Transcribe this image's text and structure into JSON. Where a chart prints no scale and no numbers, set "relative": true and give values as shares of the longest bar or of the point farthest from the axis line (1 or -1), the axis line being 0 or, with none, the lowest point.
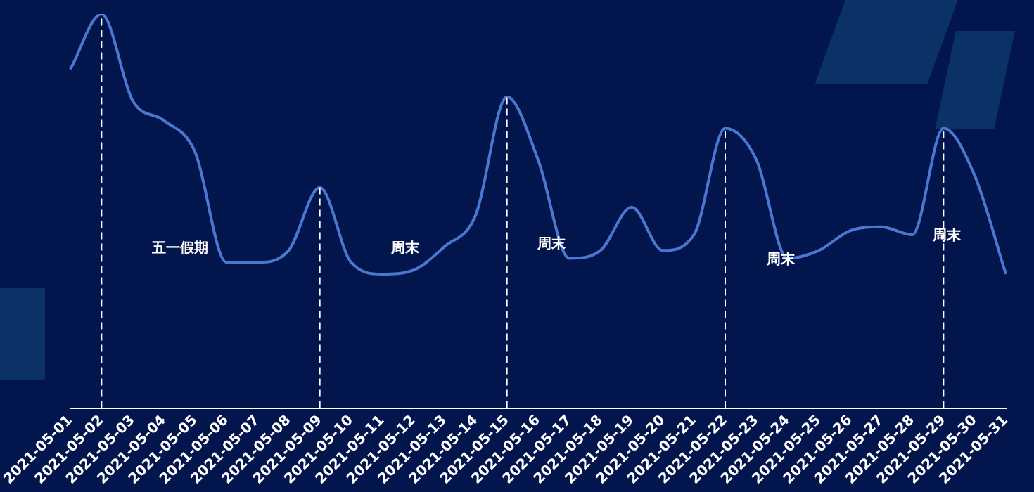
{
  "chart_data": {
    "type": "line",
    "relative": true,
    "grid": false,
    "legend": false,
    "tick_labels": "x",
    "marker": "none",
    "line_style": "solid",
    "categories": [
      "2021-05-01",
      "2021-05-02",
      "2021-05-03",
      "2021-05-04",
      "2021-05-05",
      "2021-05-06",
      "2021-05-07",
      "2021-05-08",
      "2021-05-09",
      "2021-05-10",
      "2021-05-11",
      "2021-05-12",
      "2021-05-13",
      "2021-05-14",
      "2021-05-15",
      "2021-05-16",
      "2021-05-17",
      "2021-05-18",
      "2021-05-19",
      "2021-05-20",
      "2021-05-21",
      "2021-05-22",
      "2021-05-23",
      "2021-05-24",
      "2021-05-25",
      "2021-05-26",
      "2021-05-27",
      "2021-05-28",
      "2021-05-29",
      "2021-05-30",
      "2021-05-31"
    ],
    "series": [
      {
        "color": "#4a78d0",
        "values": [
          0.86,
          1,
          0.78,
          0.73,
          0.65,
          0.37,
          0.37,
          0.4,
          0.56,
          0.37,
          0.34,
          0.35,
          0.41,
          0.49,
          0.79,
          0.63,
          0.38,
          0.4,
          0.51,
          0.4,
          0.44,
          0.71,
          0.63,
          0.38,
          0.4,
          0.45,
          0.46,
          0.44,
          0.71,
          0.59,
          0.34
        ]
      }
    ],
    "ref_lines": [
      {
        "axis": "x",
        "value": "2021-05-02",
        "color": "#ffffff",
        "line_style": "dashed"
      },
      {
        "axis": "x",
        "value": "2021-05-09",
        "color": "#ffffff",
        "line_style": "dashed"
      },
      {
        "axis": "x",
        "value": "2021-05-15",
        "color": "#ffffff",
        "line_style": "dashed"
      },
      {
        "axis": "x",
        "value": "2021-05-22",
        "color": "#ffffff",
        "line_style": "dashed"
      },
      {
        "axis": "x",
        "value": "2021-05-29",
        "color": "#ffffff",
        "line_style": "dashed"
      }
    ],
    "annotations": [
      "五一假期",
      "周末",
      "周末",
      "周末",
      "周末"
    ]
  }
}
